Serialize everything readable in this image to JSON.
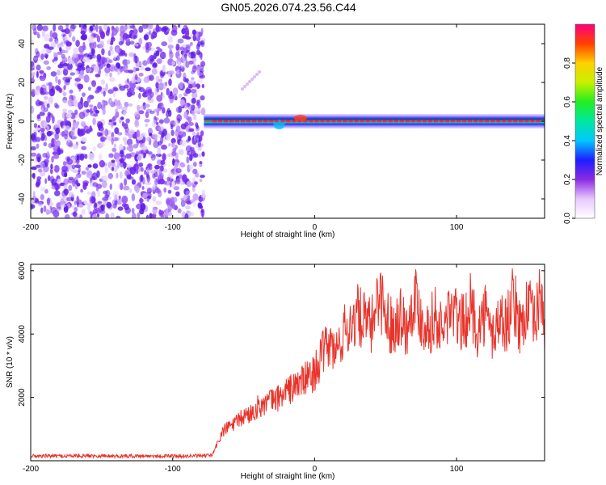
{
  "title": "GN05.2026.074.23.56.C44",
  "chart_data": [
    {
      "type": "heatmap",
      "xlabel": "Height of straight line (km)",
      "ylabel": "Frequency (Hz)",
      "xlim": [
        -200,
        162
      ],
      "ylim": [
        -50,
        50
      ],
      "x_ticks": [
        -200,
        -100,
        0,
        100
      ],
      "x_tick_labels": [
        "-200",
        "-100",
        "0",
        "100"
      ],
      "y_ticks": [
        40,
        20,
        0,
        -20,
        -40
      ],
      "y_tick_labels": [
        "40",
        "20",
        "0",
        "-20",
        "-40"
      ],
      "noise_region_x": [
        -200,
        -78
      ],
      "line_center_hz": 0,
      "colorbar": {
        "label": "Normalized spectral amplitude",
        "range": [
          0,
          1
        ],
        "ticks": [
          0.0,
          0.2,
          0.4,
          0.6,
          0.8
        ],
        "tick_labels": [
          "0.0",
          "0.2",
          "0.4",
          "0.6",
          "0.8"
        ]
      }
    },
    {
      "type": "line",
      "xlabel": "Height of straight line (km)",
      "ylabel": "SNR (10 * v/v)",
      "xlim": [
        -200,
        162
      ],
      "ylim": [
        0,
        6200
      ],
      "x_ticks": [
        -200,
        -100,
        0,
        100
      ],
      "x_tick_labels": [
        "-200",
        "-100",
        "0",
        "100"
      ],
      "y_ticks": [
        2000,
        4000,
        6000
      ],
      "y_tick_labels": [
        "2000",
        "4000",
        "6000"
      ],
      "color": "#e8332a",
      "series": [
        {
          "name": "SNR",
          "x": [
            -200,
            -180,
            -160,
            -140,
            -120,
            -100,
            -80,
            -72,
            -65,
            -60,
            -55,
            -50,
            -45,
            -40,
            -35,
            -30,
            -25,
            -20,
            -15,
            -10,
            -5,
            0,
            5,
            10,
            15,
            20,
            25,
            30,
            35,
            40,
            45,
            50,
            55,
            60,
            65,
            70,
            75,
            80,
            85,
            90,
            95,
            100,
            105,
            110,
            115,
            120,
            125,
            130,
            135,
            140,
            145,
            150,
            155,
            160,
            162
          ],
          "y": [
            150,
            150,
            160,
            150,
            150,
            150,
            150,
            180,
            900,
            1100,
            1200,
            1400,
            1500,
            1700,
            1800,
            1900,
            2000,
            2200,
            2300,
            2500,
            2600,
            2800,
            3300,
            3700,
            3400,
            4000,
            4300,
            4600,
            4400,
            4200,
            5400,
            4600,
            4200,
            4700,
            4100,
            5300,
            4500,
            4200,
            4600,
            4000,
            4800,
            4500,
            4300,
            4900,
            4100,
            4700,
            3900,
            4500,
            4300,
            5100,
            4200,
            4900,
            4300,
            5400,
            3800
          ]
        }
      ]
    }
  ]
}
